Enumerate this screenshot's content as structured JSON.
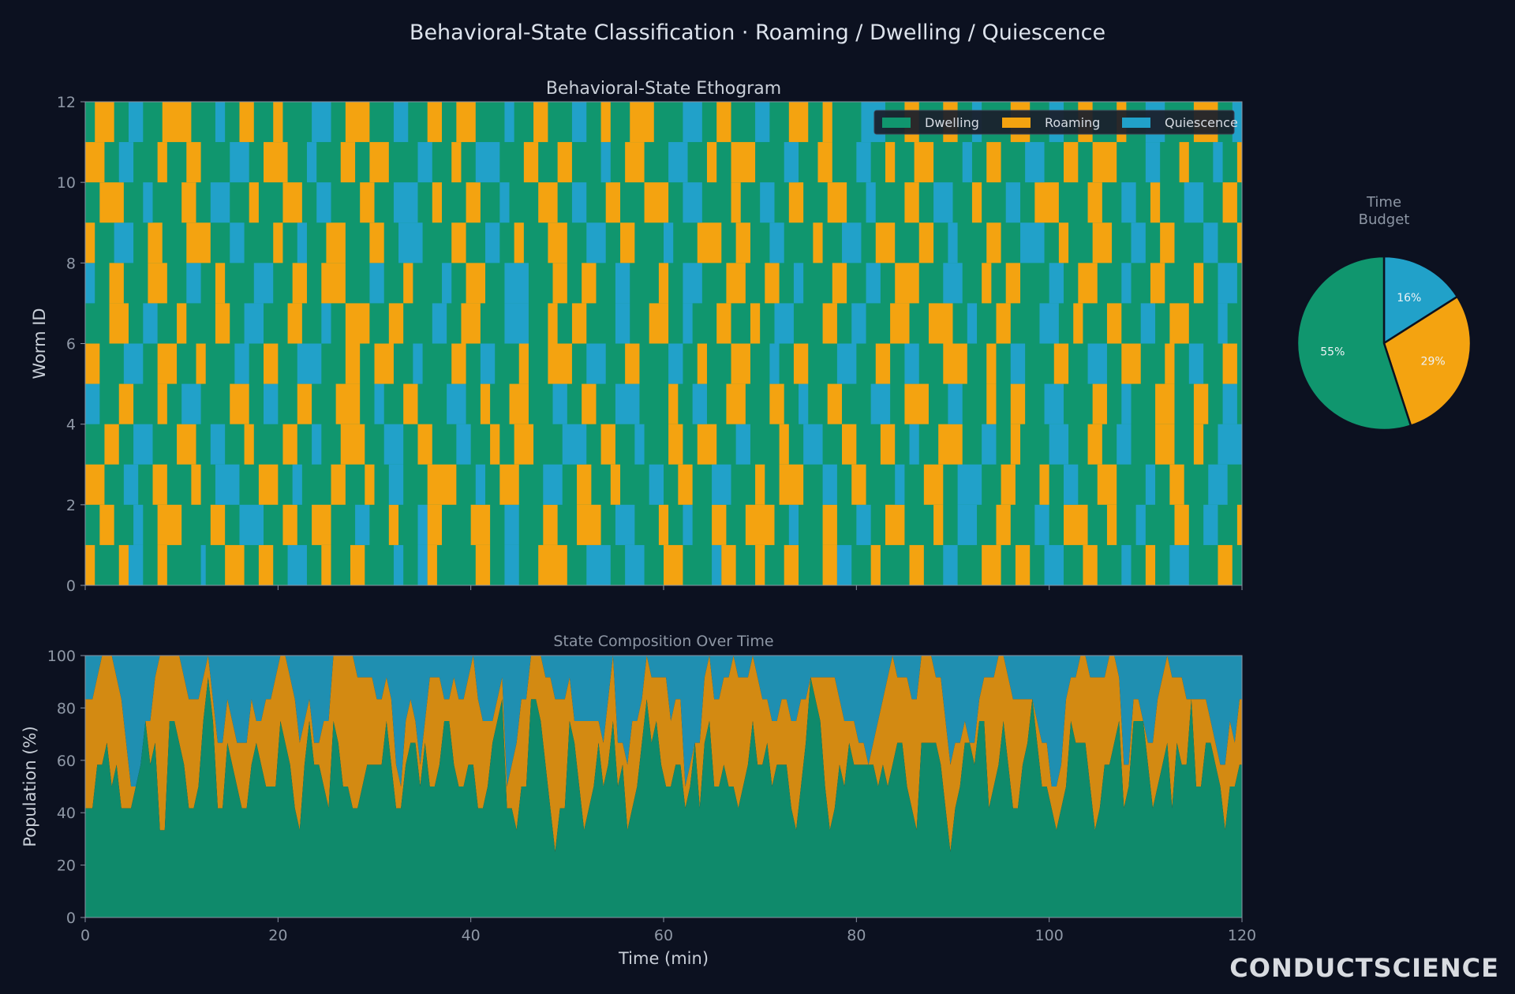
{
  "figure": {
    "title": "Behavioral-State Classification · Roaming / Dwelling / Quiescence",
    "watermark": "CONDUCTSCIENCE",
    "background": "#0c1120"
  },
  "states": {
    "Dwelling": "#10966e",
    "Roaming": "#f4a310",
    "Quiescence": "#21a1c9"
  },
  "chart_data": [
    {
      "id": "ethogram",
      "type": "heatmap",
      "title": "Behavioral-State Ethogram",
      "xlabel": "",
      "ylabel": "Worm ID",
      "xlim": [
        0,
        120
      ],
      "ylim": [
        0,
        12
      ],
      "xticks": [
        0,
        20,
        40,
        60,
        80,
        100,
        120
      ],
      "yticks": [
        0,
        2,
        4,
        6,
        8,
        10,
        12
      ],
      "bin_minutes": 0.5,
      "legend": {
        "placement": "top-right",
        "entries": [
          "Dwelling",
          "Roaming",
          "Quiescence"
        ]
      },
      "rows": [
        {
          "worm": 0,
          "bouts": "R2D5R2Q3D3R2D7Q1D4R4D3R3D3Q4D3R2D4R3D6Q2D3Q2R2D8R3D3Q3D4R6D4Q5D3Q4D4R4D6Q2R3D4R2D4R3D5R3Q3D4R2D6R3D4Q3D5R4D3R3D3Q4D4R3D5Q2D3R2D3Q4D6R3D4Q2D3R3D5Q5D3R4D4R3D3Q3D4R2D6R2D3Q3D5R3D4Q4D3R2D4"
        },
        {
          "worm": 1,
          "bouts": "D3R3D4Q2D3R5D6R3D3Q5D4R3D3R4D5Q3D4R2D4Q2R3D6R4D3Q3D5R3D4R5D3Q4D5R2D3Q2D4R3D4R6D3Q2D5R3D4Q3D3R4D6R2D3Q4D4R3D5Q3D3R5D4R2D4Q2D6R3D3Q3D4R4D5R3D3Q5D4R2D5R3D4Q2D3R4D4Q3D6R3D3R2D5Q4D4R3D4Q3D3R4D5"
        },
        {
          "worm": 2,
          "bouts": "R4D4Q3D3R3D5R2D3Q5D4R4D3Q2D6R3D4R2D3Q3D5R6D4Q2D3R4D5Q4D3R3D4R2D6Q3D3R3D4Q4D5R2D3R5D4Q3D3R3D6Q2D4R4D3Q5D4R3D5R2D3Q3D4R4D6Q2D3R3D5Q4D3R4D4R2D3Q3D6R3D4Q2D5R3D3Q4D4R5D3R2D5Q3D4R3D4"
        },
        {
          "worm": 3,
          "bouts": "D4R3D3Q4D5R4D3Q3D4R2D6R3D3Q2D4R5D4Q4D3R3D5Q3D4R2D3R4D6Q5D3R3D4Q2D5R3D3R4D4Q3D6R2D3Q4D4R3D5R3D3Q2D4R5D4Q3D3R2D6Q4D4R3D3Q3D5R4D4R2D3Q5D4R3D6Q2D3R4D4Q3D5R3D3R4D4Q2D6R3D3Q4D4R2D5"
        },
        {
          "worm": 4,
          "bouts": "Q3D4R3D5R2D3Q4D6R4D3Q3D4R3D5R5D3Q2D4R3D6Q4D3R2D4R4D5Q3D3R3D4Q5D6R2D3Q3D4R4D5R3D3Q2D4R3D6Q4D3R5D4Q3D5R2D3R3D4Q4D6R3D3Q2D5R4D4R3D3Q3D6R2D4Q5D3R3D5Q2D4R4D3R3D6Q3D4R3D4"
        },
        {
          "worm": 5,
          "bouts": "R3D5Q4D3R4D4R2D6Q3D3R3D4Q5D5R3D3R4D4Q2D6R3D3Q3D5R2D4R5D3Q4D4R3D6Q3D3R2D5R4D4Q2D3R3D6Q4D4R3D3Q3D5R5D4R2D3Q3D6R3D4Q4D3R4D5R2D3Q3D4R3D6Q5D3R4D4R2D5Q3D4R3D3Q2D6R4D4Q3D3R3D5"
        },
        {
          "worm": 6,
          "bouts": "D5R4D3Q3D4R2D6R3D3Q4D5R3D4Q2D3R5D4R3D6Q3D3R4D5Q5D4R2D3R3D6Q3D4R4D3Q2D5R3D4R2D3Q4D6R3D3Q3D5R4D4R5D3Q2D4R3D6Q4D3R2D5R3D4Q3D3R4D6Q2D4R3D5Q5D3R2D4R4D4Q3D6R3D3Q4D4R2D5R3D4"
        },
        {
          "worm": 7,
          "bouts": "Q2D3R3D5R4D4Q3D3R2D6Q4D4R3D3R5D5Q3D4R2D6Q2D3R4D4Q5D5R3D3R3D4Q3D6R2D3Q4D5R4D4R3D3Q2D6R3D4Q3D3R5D5Q4D4R2D3R3D6Q3D3R4D5Q2D4R3D6R2D3Q4D4R3D5Q3D3R4D6Q5D4R2D3R3D5Q3D4R4D4"
        },
        {
          "worm": 8,
          "bouts": "R2D4Q4D3R3D5R5D4Q3D6R2D3Q2D4R4D5R3D3Q5D6R3D4Q3D3R2D5R4D4Q4D3R3D6Q2D5R5D3R3D4Q3D6R2D4Q4D3R4D5R3D3Q2D6R3D4Q5D3R2D5R4D4Q3D3R3D6Q3D4R5D3R2D5Q4D4R3D6Q2D3R4D4Q3D5R3D3R2D6"
        },
        {
          "worm": 9,
          "bouts": "D3R5D4Q2D6R3D3Q4D4R2D5R4D3Q3D6R3D4Q5D3R2D5R3D4Q2D6R4D3Q3D4R3D5R5D3Q4D6R2D4Q3D3R3D5R4D4Q2D6R3D3Q4D4R2D5Q3D3R5D6R3D4Q3D3R2D5Q4D4R3D6R4D3Q2D5R3D4Q5D3R2D6R3D4Q3D5R4D4"
        },
        {
          "worm": 10,
          "bouts": "R4D3Q3D5R2D4R3D6Q4D3R5D4Q2D5R3D3R4D6Q3D4R2D3Q5D5R3D4R3D6Q2D3R4D5Q4D4R2D3R5D6Q3D4R3D5Q3D3R2D4R4D6Q2D3R3D5Q4D4R3D3R5D6Q3D4R2D5Q2D3R4D4R3D6Q4D3R3D5Q3D4R2D3R4D6Q5D4"
        },
        {
          "worm": 11,
          "bouts": "D2R4D3Q3D4R6D5Q2D3R3D4R2D6Q4D3R5D5Q3D4R3D3R4D6Q2D4R3D5Q3D3R2D4R5D6Q4D3R3D5Q3D4R4D3R2D6Q5D4R3D5R3D3Q2D6R4D4Q3D3R3D5R2D4Q4D6R5D3Q3D4R3D5R2D3Q4D6R3D4Q3D3R4D5R3D4Q2D6"
        }
      ]
    },
    {
      "id": "time-budget",
      "type": "pie",
      "title": "Time\nBudget",
      "slices": [
        {
          "label": "Quiescence",
          "value": 16,
          "text": "16%"
        },
        {
          "label": "Roaming",
          "value": 29,
          "text": "29%"
        },
        {
          "label": "Dwelling",
          "value": 55,
          "text": "55%"
        }
      ]
    },
    {
      "id": "composition",
      "type": "area",
      "title": "State Composition Over Time",
      "xlabel": "Time (min)",
      "ylabel": "Population (%)",
      "xlim": [
        0,
        120
      ],
      "ylim": [
        0,
        100
      ],
      "xticks": [
        0,
        20,
        40,
        60,
        80,
        100,
        120
      ],
      "yticks": [
        0,
        20,
        40,
        60,
        80,
        100
      ],
      "stack_order": [
        "Dwelling",
        "Roaming",
        "Quiescence"
      ],
      "colors": {
        "Dwelling": "#0f8a6b",
        "Roaming": "#d38a12",
        "Quiescence": "#1f8fb1"
      },
      "derived_from": "ethogram"
    }
  ]
}
